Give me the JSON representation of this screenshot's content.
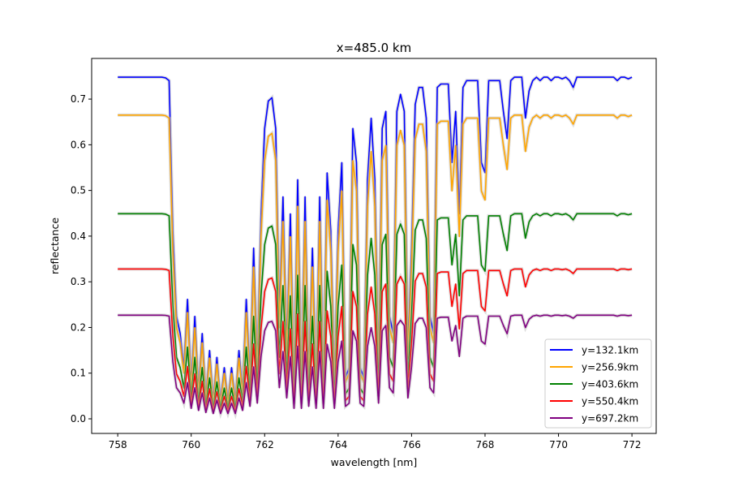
{
  "chart_data": {
    "type": "line",
    "title": "x=485.0 km",
    "xlabel": "wavelength [nm]",
    "ylabel": "reflectance",
    "xlim": [
      757.29,
      772.66
    ],
    "ylim": [
      -0.032,
      0.789
    ],
    "xticks": [
      758,
      760,
      762,
      764,
      766,
      768,
      770,
      772
    ],
    "xtick_labels": [
      "758",
      "760",
      "762",
      "764",
      "766",
      "768",
      "770",
      "772"
    ],
    "yticks": [
      0.0,
      0.1,
      0.2,
      0.3,
      0.4,
      0.5,
      0.6,
      0.7
    ],
    "ytick_labels": [
      "0.0",
      "0.1",
      "0.2",
      "0.3",
      "0.4",
      "0.5",
      "0.6",
      "0.7"
    ],
    "grid": false,
    "legend_position": "lower-right",
    "x_start": 758.0,
    "x_step": 0.1,
    "relative_transmission": [
      1,
      1,
      1,
      1,
      1,
      1,
      1,
      1,
      1,
      1,
      1,
      1,
      1,
      0.998,
      0.99,
      0.55,
      0.3,
      0.25,
      0.15,
      0.35,
      0.1,
      0.3,
      0.08,
      0.25,
      0.06,
      0.2,
      0.05,
      0.18,
      0.05,
      0.15,
      0.05,
      0.15,
      0.05,
      0.2,
      0.08,
      0.35,
      0.12,
      0.5,
      0.15,
      0.6,
      0.85,
      0.93,
      0.94,
      0.85,
      0.3,
      0.65,
      0.2,
      0.6,
      0.1,
      0.7,
      0.1,
      0.65,
      0.12,
      0.5,
      0.1,
      0.65,
      0.1,
      0.72,
      0.55,
      0.1,
      0.55,
      0.75,
      0.12,
      0.15,
      0.85,
      0.75,
      0.15,
      0.12,
      0.7,
      0.88,
      0.7,
      0.15,
      0.85,
      0.9,
      0.3,
      0.25,
      0.9,
      0.95,
      0.9,
      0.2,
      0.5,
      0.92,
      0.97,
      0.97,
      0.88,
      0.3,
      0.25,
      0.97,
      0.98,
      0.98,
      0.98,
      0.75,
      0.9,
      0.6,
      0.97,
      0.99,
      0.99,
      0.99,
      0.99,
      0.75,
      0.72,
      0.99,
      0.99,
      0.99,
      0.99,
      0.9,
      0.82,
      0.99,
      1,
      1,
      1,
      0.88,
      0.96,
      0.99,
      1,
      0.99,
      1,
      1,
      0.99,
      1,
      1,
      0.995,
      1,
      0.99,
      0.97,
      1,
      1,
      1,
      1,
      1,
      1,
      1,
      1,
      1,
      1,
      1,
      0.99,
      1,
      1,
      0.995,
      1
    ],
    "series": [
      {
        "name": "y=132.1km",
        "continuum": 0.748,
        "color": "#0000ff"
      },
      {
        "name": "y=256.9km",
        "continuum": 0.665,
        "color": "#ffa500"
      },
      {
        "name": "y=403.6km",
        "continuum": 0.449,
        "color": "#008000"
      },
      {
        "name": "y=550.4km",
        "continuum": 0.328,
        "color": "#ff0000"
      },
      {
        "name": "y=697.2km",
        "continuum": 0.227,
        "color": "#800080"
      }
    ]
  }
}
